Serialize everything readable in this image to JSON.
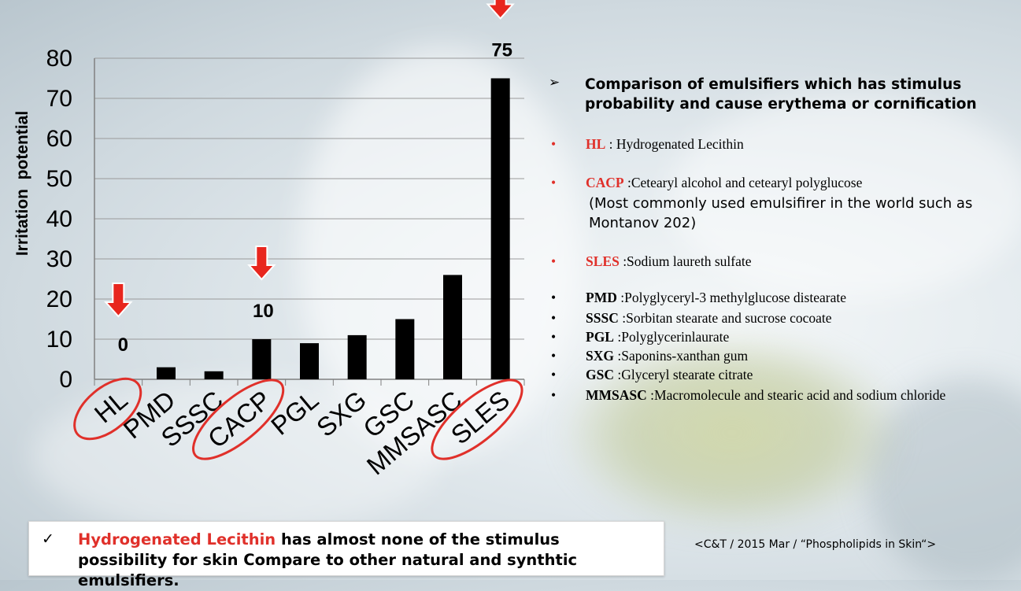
{
  "colors": {
    "bar": "#000000",
    "highlight": "#e0302a",
    "arrow": "#e8261e"
  },
  "chart_data": {
    "type": "bar",
    "ylabel": "Irritation  potential",
    "ylim": [
      0,
      80
    ],
    "yticks": [
      "0",
      "10",
      "20",
      "30",
      "40",
      "50",
      "60",
      "70",
      "80"
    ],
    "categories": [
      "HL",
      "PMD",
      "SSSC",
      "CACP",
      "PGL",
      "SXG",
      "GSC",
      "MMSASC",
      "SLES"
    ],
    "values": [
      0,
      3,
      2,
      10,
      9,
      11,
      15,
      26,
      75
    ],
    "data_labels": [
      {
        "category": "HL",
        "text": "0"
      },
      {
        "category": "CACP",
        "text": "10"
      },
      {
        "category": "SLES",
        "text": "75"
      }
    ],
    "highlighted": [
      "HL",
      "CACP",
      "SLES"
    ],
    "grid": "horizontal",
    "legend": "none"
  },
  "legend_panel": {
    "marker": "➢",
    "heading": "Comparison of emulsifiers which has stimulus probability and cause erythema or cornification",
    "definitions": [
      {
        "bullet": "•",
        "abbr": "HL",
        "sep": " : ",
        "text": "Hydrogenated Lecithin",
        "highlight": true
      },
      {
        "bullet": "•",
        "abbr": "CACP",
        "sep": " :",
        "text": "Cetearyl alcohol and cetearyl polyglucose",
        "note": "(Most commonly used emulsifirer in the world such as Montanov 202)",
        "highlight": true
      },
      {
        "bullet": "•",
        "abbr": "SLES",
        "sep": " :",
        "text": "Sodium laureth sulfate",
        "highlight": true
      },
      {
        "bullet": "•",
        "abbr": "PMD",
        "sep": " :",
        "text": "Polyglyceryl-3 methylglucose distearate",
        "highlight": false
      },
      {
        "bullet": "•",
        "abbr": "SSSC",
        "sep": " :",
        "text": "Sorbitan stearate and sucrose cocoate",
        "highlight": false
      },
      {
        "bullet": "•",
        "abbr": "PGL",
        "sep": " :",
        "text": "Polyglycerinlaurate",
        "highlight": false
      },
      {
        "bullet": "•",
        "abbr": "SXG",
        "sep": " :",
        "text": "Saponins-xanthan gum",
        "highlight": false
      },
      {
        "bullet": "•",
        "abbr": "GSC",
        "sep": " :",
        "text": "Glyceryl stearate citrate",
        "highlight": false
      },
      {
        "bullet": "•",
        "abbr": "MMSASC",
        "sep": " :",
        "text": "Macromolecule and stearic acid and sodium chloride",
        "highlight": false
      }
    ]
  },
  "callout": {
    "check": "✓",
    "highlight": "Hydrogenated Lecithin",
    "rest": " has almost none of the stimulus possibility for skin Compare to other natural and synthtic emulsifiers."
  },
  "source": "<C&T / 2015 Mar / “Phospholipids in Skin“>"
}
